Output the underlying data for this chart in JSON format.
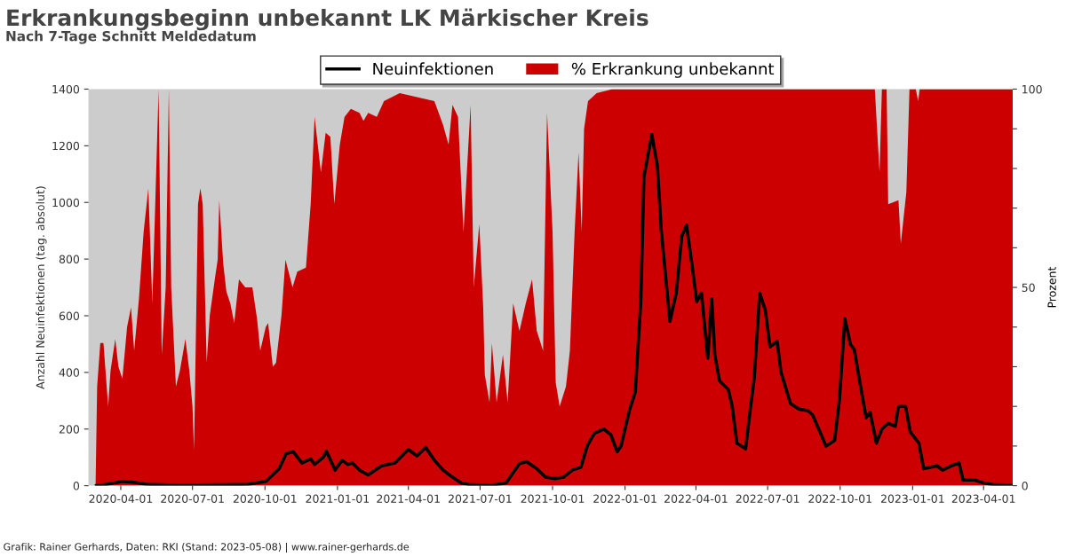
{
  "chart_data": {
    "type": "line",
    "title": "Erkrankungsbeginn unbekannt LK Märkischer Kreis",
    "subtitle": "Nach 7-Tage Schnitt Meldedatum",
    "ylabel": "Anzahl Neuinfektionen (tag. absolut)",
    "y2label": "Prozent",
    "annotations": [
      "Grafik: Rainer Gerhards, Daten: RKI (Stand: 2023-05-08) | www.rainer-gerhards.de"
    ],
    "xlim": [
      "2020-02-20",
      "2023-05-08"
    ],
    "ylim": [
      0,
      1400
    ],
    "yticks": [
      0,
      200,
      400,
      600,
      800,
      1000,
      1200,
      1400
    ],
    "y2lim": [
      0,
      100
    ],
    "y2ticks": [
      0,
      {
        "value": 10,
        "label": null
      },
      {
        "value": 20,
        "label": null
      },
      {
        "value": 30,
        "label": null
      },
      {
        "value": 40,
        "label": null
      },
      50,
      {
        "value": 60,
        "label": null
      },
      {
        "value": 70,
        "label": null
      },
      {
        "value": 80,
        "label": null
      },
      {
        "value": 90,
        "label": null
      },
      100
    ],
    "xticks": [
      {
        "value": "2020-04-01",
        "label": "2020-04-01"
      },
      {
        "value": "2020-07-01",
        "label": "2020-07-01"
      },
      {
        "value": "2020-10-01",
        "label": "2020-10-01"
      },
      {
        "value": "2021-01-01",
        "label": "2021-01-01"
      },
      {
        "value": "2021-04-01",
        "label": "2021-04-01"
      },
      {
        "value": "2021-07-01",
        "label": "2021-07-01"
      },
      {
        "value": "2021-10-01",
        "label": "2021-10-01"
      },
      {
        "value": "2022-01-01",
        "label": "2022-01-01"
      },
      {
        "value": "2022-04-01",
        "label": "2022-04-01"
      },
      {
        "value": "2022-07-01",
        "label": "2022-07-01"
      },
      {
        "value": "2022-10-01",
        "label": "2022-10-01"
      },
      {
        "value": "2023-01-01",
        "label": "2023-01-01"
      },
      {
        "value": "2023-04-01",
        "label": "2023-04-01"
      }
    ],
    "grid": false,
    "legend": "top",
    "series": [
      {
        "name": "Neuinfektionen",
        "color": "#000000",
        "x": [
          "2020-03-01",
          "2020-03-08",
          "2020-03-24",
          "2020-04-03",
          "2020-04-17",
          "2020-05-03",
          "2020-06-12",
          "2020-08-07",
          "2020-09-10",
          "2020-10-02",
          "2020-10-19",
          "2020-10-28",
          "2020-11-06",
          "2020-11-17",
          "2020-11-28",
          "2020-12-03",
          "2020-12-14",
          "2020-12-18",
          "2020-12-29",
          "2021-01-07",
          "2021-01-14",
          "2021-01-20",
          "2021-01-29",
          "2021-02-09",
          "2021-02-26",
          "2021-03-15",
          "2021-04-01",
          "2021-04-12",
          "2021-04-23",
          "2021-05-04",
          "2021-05-15",
          "2021-05-27",
          "2021-06-07",
          "2021-06-19",
          "2021-07-17",
          "2021-08-03",
          "2021-08-20",
          "2021-08-29",
          "2021-09-11",
          "2021-09-22",
          "2021-10-04",
          "2021-10-15",
          "2021-10-26",
          "2021-11-06",
          "2021-11-14",
          "2021-11-23",
          "2021-12-05",
          "2021-12-14",
          "2021-12-22",
          "2021-12-27",
          "2022-01-07",
          "2022-01-14",
          "2022-01-21",
          "2022-01-25",
          "2022-02-04",
          "2022-02-11",
          "2022-02-16",
          "2022-02-27",
          "2022-03-07",
          "2022-03-14",
          "2022-03-20",
          "2022-03-27",
          "2022-04-02",
          "2022-04-08",
          "2022-04-16",
          "2022-04-21",
          "2022-04-25",
          "2022-05-01",
          "2022-05-12",
          "2022-05-17",
          "2022-05-23",
          "2022-06-03",
          "2022-06-09",
          "2022-06-14",
          "2022-06-21",
          "2022-06-28",
          "2022-07-04",
          "2022-07-13",
          "2022-07-18",
          "2022-07-30",
          "2022-08-10",
          "2022-08-21",
          "2022-08-27",
          "2022-09-07",
          "2022-09-13",
          "2022-09-24",
          "2022-09-30",
          "2022-10-07",
          "2022-10-14",
          "2022-10-19",
          "2022-10-27",
          "2022-11-03",
          "2022-11-08",
          "2022-11-16",
          "2022-11-23",
          "2022-12-01",
          "2022-12-10",
          "2022-12-14",
          "2022-12-23",
          "2022-12-29",
          "2023-01-09",
          "2023-01-15",
          "2023-02-01",
          "2023-02-08",
          "2023-02-19",
          "2023-03-01",
          "2023-03-06",
          "2023-03-21",
          "2023-04-01",
          "2023-04-15",
          "2023-05-08"
        ],
        "values": [
          0,
          2,
          10,
          15,
          12,
          5,
          2,
          3,
          5,
          15,
          60,
          113,
          120,
          80,
          95,
          75,
          100,
          122,
          55,
          90,
          75,
          80,
          55,
          38,
          70,
          80,
          128,
          105,
          135,
          90,
          55,
          30,
          10,
          3,
          2,
          10,
          78,
          85,
          60,
          30,
          25,
          30,
          55,
          65,
          140,
          185,
          200,
          180,
          120,
          140,
          270,
          330,
          650,
          1090,
          1240,
          1130,
          900,
          580,
          680,
          880,
          920,
          780,
          650,
          680,
          450,
          660,
          460,
          370,
          340,
          280,
          150,
          130,
          270,
          380,
          680,
          620,
          490,
          510,
          400,
          290,
          270,
          265,
          250,
          180,
          140,
          160,
          300,
          590,
          500,
          480,
          350,
          240,
          260,
          150,
          200,
          220,
          210,
          280,
          280,
          190,
          150,
          60,
          70,
          55,
          70,
          80,
          20,
          20,
          10,
          3,
          2
        ]
      },
      {
        "name": "% Erkrankung unbekannt",
        "type": "area",
        "axis": "y2",
        "color": "#cc0000",
        "x": [
          "2020-02-29",
          "2020-03-02",
          "2020-03-06",
          "2020-03-10",
          "2020-03-16",
          "2020-03-19",
          "2020-03-25",
          "2020-03-29",
          "2020-04-03",
          "2020-04-09",
          "2020-04-14",
          "2020-04-18",
          "2020-04-24",
          "2020-04-30",
          "2020-05-06",
          "2020-05-11",
          "2020-05-14",
          "2020-05-19",
          "2020-05-23",
          "2020-05-28",
          "2020-06-01",
          "2020-06-04",
          "2020-06-10",
          "2020-06-15",
          "2020-06-22",
          "2020-06-27",
          "2020-07-01",
          "2020-07-03",
          "2020-07-08",
          "2020-07-11",
          "2020-07-14",
          "2020-07-19",
          "2020-07-23",
          "2020-07-30",
          "2020-08-02",
          "2020-08-04",
          "2020-08-09",
          "2020-08-13",
          "2020-08-18",
          "2020-08-23",
          "2020-08-29",
          "2020-09-06",
          "2020-09-15",
          "2020-09-21",
          "2020-09-25",
          "2020-10-02",
          "2020-10-05",
          "2020-10-11",
          "2020-10-15",
          "2020-10-22",
          "2020-10-27",
          "2020-11-05",
          "2020-11-11",
          "2020-11-22",
          "2020-11-28",
          "2020-12-03",
          "2020-12-11",
          "2020-12-17",
          "2020-12-23",
          "2020-12-28",
          "2021-01-04",
          "2021-01-10",
          "2021-01-18",
          "2021-01-29",
          "2021-02-03",
          "2021-02-09",
          "2021-02-20",
          "2021-03-01",
          "2021-03-21",
          "2021-04-12",
          "2021-05-04",
          "2021-05-15",
          "2021-05-22",
          "2021-05-27",
          "2021-06-03",
          "2021-06-10",
          "2021-06-19",
          "2021-06-23",
          "2021-06-30",
          "2021-07-05",
          "2021-07-07",
          "2021-07-13",
          "2021-07-16",
          "2021-07-22",
          "2021-07-30",
          "2021-08-05",
          "2021-08-12",
          "2021-08-20",
          "2021-08-28",
          "2021-09-05",
          "2021-09-11",
          "2021-09-19",
          "2021-09-24",
          "2021-10-01",
          "2021-10-05",
          "2021-10-10",
          "2021-10-18",
          "2021-10-23",
          "2021-10-29",
          "2021-11-03",
          "2021-11-07",
          "2021-11-10",
          "2021-11-15",
          "2021-11-26",
          "2021-12-16",
          "2022-11-14",
          "2022-11-20",
          "2022-11-23",
          "2022-11-29",
          "2022-12-01",
          "2022-12-14",
          "2022-12-17",
          "2022-12-24",
          "2022-12-28",
          "2023-01-05",
          "2023-01-08",
          "2023-01-10",
          "2023-05-08"
        ],
        "values": [
          0,
          25,
          36,
          36,
          20,
          29,
          37,
          30,
          27,
          40,
          45,
          34,
          47,
          64,
          75,
          46,
          66,
          100,
          33,
          50,
          100,
          50,
          25,
          29,
          37,
          29,
          20,
          9,
          71,
          75,
          71,
          31,
          43,
          53,
          57,
          72,
          56,
          49,
          46,
          41,
          52,
          50,
          50,
          42,
          34,
          40,
          41,
          30,
          31,
          43,
          57,
          50,
          54,
          55,
          71,
          93,
          79,
          89,
          88,
          71,
          86,
          93,
          95,
          94,
          92,
          94,
          93,
          97,
          99,
          98,
          97,
          91,
          86,
          96,
          93,
          64,
          96,
          50,
          66,
          45,
          28,
          21,
          36,
          21,
          33,
          21,
          46,
          39,
          46,
          52,
          39,
          34,
          94,
          64,
          26,
          20,
          25,
          34,
          64,
          84,
          64,
          90,
          97,
          99,
          100,
          100,
          79,
          100,
          100,
          71,
          72,
          61,
          74,
          100,
          100,
          97,
          100,
          100
        ]
      }
    ]
  }
}
